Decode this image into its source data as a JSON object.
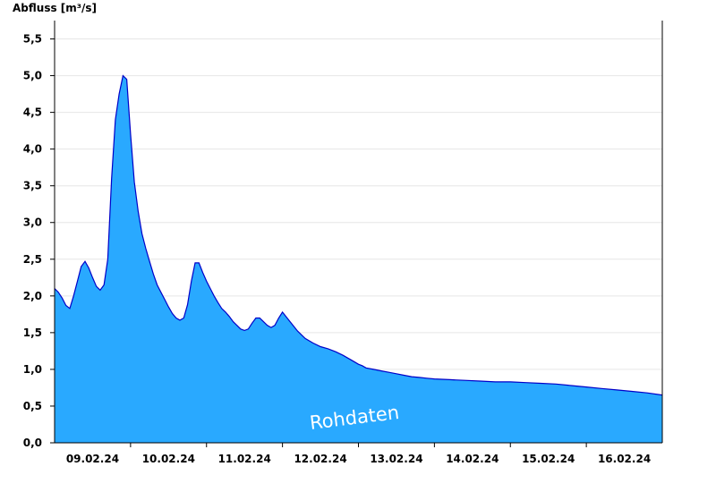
{
  "chart_data": {
    "type": "area",
    "ylabel": "Abfluss [m³/s]",
    "watermark": "Rohdaten",
    "ylim": [
      0,
      5.75
    ],
    "y_ticks": [
      "0,0",
      "0,5",
      "1,0",
      "1,5",
      "2,0",
      "2,5",
      "3,0",
      "3,5",
      "4,0",
      "4,5",
      "5,0",
      "5,5"
    ],
    "y_tick_values": [
      0,
      0.5,
      1.0,
      1.5,
      2.0,
      2.5,
      3.0,
      3.5,
      4.0,
      4.5,
      5.0,
      5.5
    ],
    "x_range_days": [
      0,
      8
    ],
    "x_tick_labels": [
      "09.02.24",
      "10.02.24",
      "11.02.24",
      "12.02.24",
      "13.02.24",
      "14.02.24",
      "15.02.24",
      "16.02.24"
    ],
    "day_boundaries": [
      1,
      2,
      3,
      4,
      5,
      6,
      7
    ],
    "grid": true,
    "colors": {
      "fill": "#29a9ff",
      "line": "#0000c8",
      "divider": "#1060a0"
    },
    "series": [
      {
        "x": [
          0,
          0.05,
          0.1,
          0.15,
          0.2,
          0.25,
          0.3,
          0.35,
          0.4,
          0.45,
          0.5,
          0.55,
          0.6,
          0.65,
          0.7,
          0.75,
          0.8,
          0.85,
          0.9,
          0.95,
          1.0,
          1.05,
          1.1,
          1.15,
          1.2,
          1.25,
          1.3,
          1.35,
          1.4,
          1.45,
          1.5,
          1.55,
          1.6,
          1.65,
          1.7,
          1.75,
          1.8,
          1.85,
          1.9,
          1.95,
          2.0,
          2.05,
          2.1,
          2.15,
          2.2,
          2.25,
          2.3,
          2.35,
          2.4,
          2.45,
          2.5,
          2.55,
          2.6,
          2.65,
          2.7,
          2.75,
          2.8,
          2.85,
          2.9,
          2.95,
          3.0,
          3.1,
          3.2,
          3.3,
          3.4,
          3.5,
          3.6,
          3.7,
          3.8,
          3.85,
          3.9,
          3.95,
          4.0,
          4.05,
          4.1,
          4.2,
          4.3,
          4.4,
          4.5,
          4.6,
          4.7,
          4.8,
          4.9,
          5.0,
          5.2,
          5.4,
          5.6,
          5.8,
          6.0,
          6.2,
          6.4,
          6.6,
          6.8,
          7.0,
          7.2,
          7.4,
          7.6,
          7.8,
          8.0
        ],
        "y": [
          2.1,
          2.05,
          1.97,
          1.87,
          1.83,
          2.0,
          2.2,
          2.4,
          2.47,
          2.38,
          2.25,
          2.13,
          2.08,
          2.15,
          2.5,
          3.6,
          4.4,
          4.75,
          5.0,
          4.95,
          4.2,
          3.55,
          3.15,
          2.85,
          2.65,
          2.47,
          2.3,
          2.15,
          2.05,
          1.95,
          1.85,
          1.76,
          1.7,
          1.67,
          1.7,
          1.88,
          2.2,
          2.45,
          2.45,
          2.32,
          2.2,
          2.1,
          2.0,
          1.91,
          1.83,
          1.78,
          1.72,
          1.65,
          1.6,
          1.55,
          1.53,
          1.55,
          1.63,
          1.7,
          1.7,
          1.65,
          1.6,
          1.57,
          1.6,
          1.7,
          1.78,
          1.65,
          1.52,
          1.42,
          1.36,
          1.31,
          1.28,
          1.24,
          1.19,
          1.16,
          1.13,
          1.1,
          1.07,
          1.05,
          1.02,
          1.0,
          0.98,
          0.96,
          0.94,
          0.92,
          0.9,
          0.89,
          0.88,
          0.87,
          0.86,
          0.85,
          0.84,
          0.83,
          0.83,
          0.82,
          0.81,
          0.8,
          0.78,
          0.76,
          0.74,
          0.72,
          0.7,
          0.68,
          0.65
        ]
      }
    ]
  }
}
